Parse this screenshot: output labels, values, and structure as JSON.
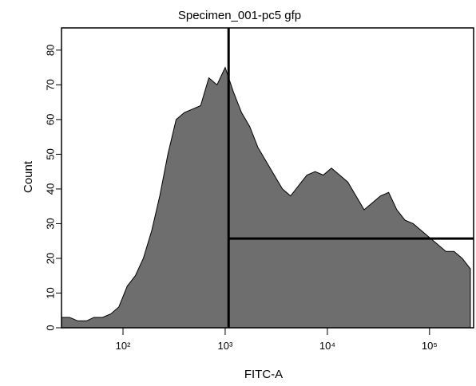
{
  "chart_data": {
    "type": "area",
    "title": "Specimen_001-pc5 gfp",
    "x_label": "FITC-A",
    "y_label": "Count",
    "xscale": "log",
    "xlim": [
      25,
      270000
    ],
    "ylim": [
      0,
      86.4
    ],
    "xticks": [
      {
        "value": 100,
        "label": "10²"
      },
      {
        "value": 1000,
        "label": "10³"
      },
      {
        "value": 10000,
        "label": "10⁴"
      },
      {
        "value": 100000,
        "label": "10⁵"
      }
    ],
    "yticks": [
      0,
      10,
      20,
      30,
      40,
      50,
      60,
      70,
      80
    ],
    "color": "#6e6e6e",
    "x": [
      25,
      30,
      36,
      44,
      52,
      63,
      76,
      91,
      110,
      132,
      158,
      191,
      229,
      275,
      331,
      398,
      479,
      575,
      692,
      832,
      1000,
      1202,
      1445,
      1738,
      2089,
      2512,
      3020,
      3631,
      4365,
      5248,
      6310,
      7586,
      9120,
      10965,
      13183,
      15849,
      19055,
      22909,
      27542,
      33113,
      39811,
      47863,
      57544,
      69183,
      83176,
      100000,
      120226,
      144544,
      173780,
      208930,
      251189
    ],
    "values": [
      3,
      3,
      2,
      2,
      3,
      3,
      4,
      6,
      12,
      15,
      20,
      28,
      38,
      50,
      60,
      62,
      63,
      64,
      72,
      70,
      75,
      68,
      62,
      58,
      52,
      48,
      44,
      40,
      38,
      41,
      44,
      45,
      44,
      46,
      44,
      42,
      38,
      34,
      36,
      38,
      39,
      34,
      31,
      30,
      28,
      26,
      24,
      22,
      22,
      20,
      17
    ],
    "gate": {
      "x": 1080,
      "y": 25.7
    }
  }
}
